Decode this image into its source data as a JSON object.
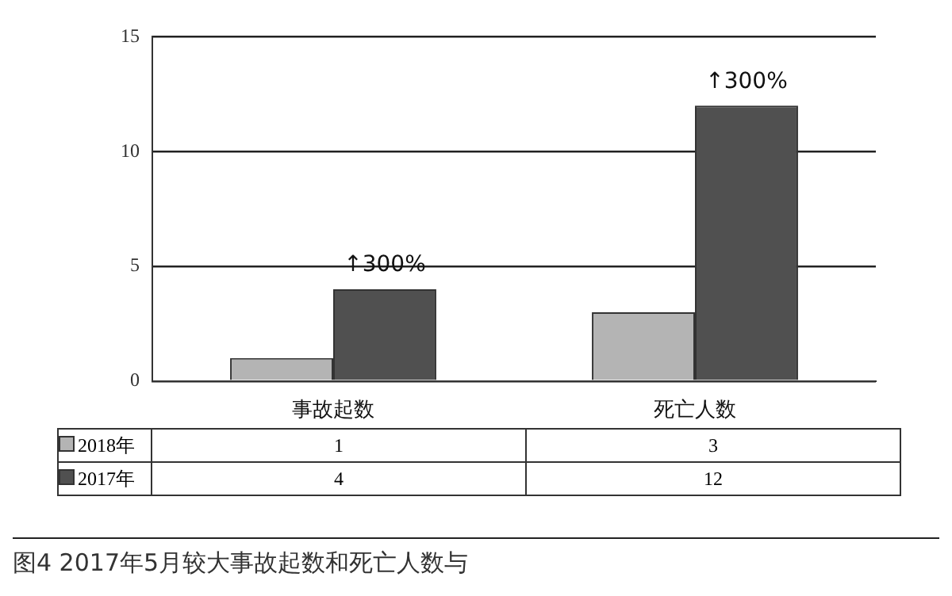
{
  "chart_data": {
    "type": "bar",
    "title": "图4 2017年5月较大事故起数和死亡人数与",
    "categories": [
      "事故起数",
      "死亡人数"
    ],
    "series": [
      {
        "name": "2018年",
        "color": "#b4b4b4",
        "values": [
          1,
          3
        ]
      },
      {
        "name": "2017年",
        "color": "#505050",
        "values": [
          4,
          12
        ]
      }
    ],
    "ylim": [
      0,
      15
    ],
    "yticks": [
      0,
      5,
      10,
      15
    ],
    "grid": "y",
    "legend": "bottom",
    "data_labels": true,
    "annotations": [
      {
        "text": "↑300%",
        "x": "事故起数",
        "y": 4
      },
      {
        "text": "↑300%",
        "x": "死亡人数",
        "y": 12
      }
    ]
  }
}
